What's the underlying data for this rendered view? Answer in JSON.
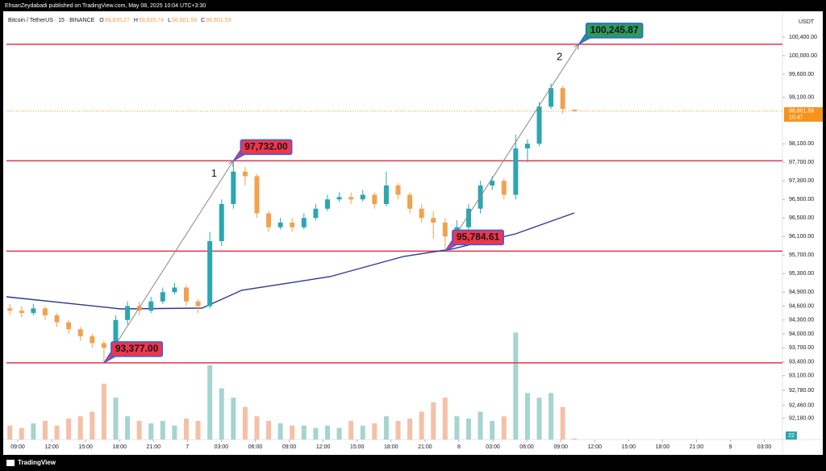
{
  "header": {
    "publisher": "EhsanZeydabadi published on TradingView.com, May 08, 2025 10:04 UTC+3:30",
    "brand": "TradingView"
  },
  "chart_data": {
    "type": "candlestick",
    "symbol": "Bitcoin / TetherUS · 15 · BINANCE",
    "ohlc_legend": [
      {
        "key": "O",
        "label": "98,835.27"
      },
      {
        "key": "H",
        "label": "98,835.74"
      },
      {
        "key": "L",
        "label": "98,801.58"
      },
      {
        "key": "C",
        "label": "98,801.59"
      }
    ],
    "currency": "USDT",
    "x": [
      -0.7,
      0.34,
      1.38,
      2.42,
      3.46,
      4.5,
      5.54,
      6.58,
      7.62,
      8.66,
      9.7,
      10.74,
      11.78,
      12.82,
      13.86,
      14.9,
      15.94,
      16.98,
      18.02,
      19.06,
      20.1,
      21.14,
      22.18,
      23.22,
      24.26,
      25.3,
      26.34,
      27.38,
      28.42,
      29.46,
      30.5,
      31.54,
      32.58,
      33.62,
      34.66,
      35.7,
      36.74,
      37.78,
      38.82,
      39.86,
      40.9,
      41.94,
      42.98,
      44.02,
      45.06,
      46.1,
      47.14,
      48.18,
      49.22
    ],
    "open": [
      94550,
      94500,
      94450,
      94550,
      94400,
      94250,
      94100,
      93950,
      93800,
      93700,
      94300,
      94600,
      94500,
      94700,
      94900,
      95000,
      94700,
      94600,
      96000,
      96800,
      97500,
      97400,
      96600,
      96300,
      96400,
      96300,
      96500,
      96700,
      96900,
      96950,
      96900,
      97000,
      96800,
      97200,
      97000,
      96700,
      96500,
      96400,
      96100,
      96300,
      96700,
      97200,
      97300,
      97000,
      98000,
      98100,
      98900,
      99300,
      98835.27
    ],
    "high": [
      94650,
      94600,
      94650,
      94600,
      94450,
      94300,
      94150,
      94000,
      93850,
      94400,
      94700,
      94700,
      94800,
      95000,
      95100,
      95050,
      94750,
      96200,
      96900,
      97732,
      97600,
      97450,
      96650,
      96500,
      96500,
      96600,
      96800,
      97000,
      97050,
      97050,
      97100,
      97050,
      97500,
      97250,
      97050,
      96800,
      96650,
      96500,
      96450,
      96800,
      97300,
      97400,
      97350,
      98300,
      98200,
      99000,
      99400,
      99350,
      98835.74
    ],
    "low": [
      94400,
      94350,
      94400,
      94300,
      94150,
      94000,
      93850,
      93700,
      93377,
      93650,
      94200,
      94400,
      94450,
      94650,
      94850,
      94600,
      94450,
      94550,
      95900,
      96700,
      97200,
      96500,
      96200,
      96250,
      96200,
      96250,
      96450,
      96650,
      96850,
      96800,
      96850,
      96700,
      96750,
      96900,
      96600,
      96400,
      96050,
      95784.61,
      96000,
      96200,
      96600,
      97100,
      96900,
      96900,
      97700,
      98050,
      98850,
      98750,
      98801.58
    ],
    "close": [
      94500,
      94450,
      94550,
      94400,
      94250,
      94100,
      93950,
      93800,
      93700,
      94300,
      94600,
      94500,
      94700,
      94900,
      95000,
      94700,
      94600,
      96000,
      96800,
      97500,
      97400,
      96600,
      96300,
      96400,
      96300,
      96500,
      96700,
      96900,
      96950,
      96900,
      97000,
      96800,
      97200,
      97000,
      96700,
      96500,
      96400,
      96100,
      96300,
      96700,
      97200,
      97300,
      97000,
      98000,
      98100,
      98900,
      99300,
      98850,
      98801.59
    ],
    "volume": [
      300,
      250,
      350,
      400,
      300,
      450,
      500,
      600,
      1200,
      900,
      500,
      400,
      350,
      400,
      300,
      450,
      400,
      1600,
      1100,
      900,
      700,
      500,
      400,
      350,
      300,
      300,
      250,
      300,
      250,
      400,
      300,
      350,
      500,
      400,
      450,
      600,
      800,
      900,
      500,
      450,
      600,
      400,
      500,
      2300,
      1000,
      900,
      1000,
      700,
      22
    ],
    "volume_lim": [
      0,
      2600
    ],
    "up_color": "#2aa7b0",
    "down_color": "#f0a24e",
    "volume_up_color": "#a6d4d0",
    "volume_down_color": "#f5c0a6",
    "moving_average": {
      "color": "#2b3990",
      "x": [
        -1,
        9.1,
        16.3,
        19.8,
        27.6,
        34.1,
        38.3,
        44,
        49.2
      ],
      "values": [
        94800,
        94540,
        94556,
        94940,
        95235,
        95670,
        95826,
        96157,
        96609
      ]
    },
    "levels": {
      "color": "#e5334b",
      "values": [
        100245.87,
        97732,
        95784.61,
        93377
      ]
    },
    "annotations": [
      {
        "label": "93,377.00",
        "x": 7.62,
        "value": 93377,
        "color": "#f23645"
      },
      {
        "label": "97,732.00",
        "x": 19.06,
        "value": 97732,
        "color": "#f23645"
      },
      {
        "label": "95,784.61",
        "x": 37.78,
        "value": 95784.61,
        "color": "#f23645"
      },
      {
        "label": "100,245.87",
        "x": 49.6,
        "value": 100245.87,
        "color": "#2e9b57"
      }
    ],
    "arrows": [
      {
        "label": "1",
        "from": [
          7.62,
          93377
        ],
        "to": [
          19.06,
          97732
        ]
      },
      {
        "label": "2",
        "from": [
          37.78,
          95784.61
        ],
        "to": [
          49.6,
          100245.87
        ]
      }
    ],
    "last_price": {
      "value": 98801.59,
      "label": "98,801.59",
      "countdown": "10:47",
      "color": "#f7931a"
    },
    "xlim": [
      -1,
      67.6
    ],
    "ylim": [
      91722,
      100956
    ],
    "xticks": [
      {
        "value": 0,
        "label": "09:00"
      },
      {
        "value": 3,
        "label": "12:00"
      },
      {
        "value": 6,
        "label": "15:00"
      },
      {
        "value": 9,
        "label": "18:00"
      },
      {
        "value": 12,
        "label": "21:00"
      },
      {
        "value": 15,
        "label": "7"
      },
      {
        "value": 18,
        "label": "03:00"
      },
      {
        "value": 21,
        "label": "06:00"
      },
      {
        "value": 24,
        "label": "09:00"
      },
      {
        "value": 27,
        "label": "12:00"
      },
      {
        "value": 30,
        "label": "15:00"
      },
      {
        "value": 33,
        "label": "18:00"
      },
      {
        "value": 36,
        "label": "21:00"
      },
      {
        "value": 39,
        "label": "8"
      },
      {
        "value": 42,
        "label": "03:00"
      },
      {
        "value": 45,
        "label": "06:00"
      },
      {
        "value": 48,
        "label": "09:00"
      },
      {
        "value": 51,
        "label": "12:00"
      },
      {
        "value": 54,
        "label": "15:00"
      },
      {
        "value": 57,
        "label": "18:00"
      },
      {
        "value": 60,
        "label": "21:00"
      },
      {
        "value": 63,
        "label": "9"
      },
      {
        "value": 66,
        "label": "03:00"
      }
    ],
    "yticks": [
      {
        "value": 100400,
        "label": "100,400.00"
      },
      {
        "value": 100000,
        "label": "100,000.00"
      },
      {
        "value": 99600,
        "label": "99,600.00"
      },
      {
        "value": 99100,
        "label": "99,100.00"
      },
      {
        "value": 98100,
        "label": "98,100.00"
      },
      {
        "value": 97700,
        "label": "97,700.00"
      },
      {
        "value": 97300,
        "label": "97,300.00"
      },
      {
        "value": 96900,
        "label": "96,900.00"
      },
      {
        "value": 96500,
        "label": "96,500.00"
      },
      {
        "value": 96100,
        "label": "96,100.00"
      },
      {
        "value": 95700,
        "label": "95,700.00"
      },
      {
        "value": 95300,
        "label": "95,300.00"
      },
      {
        "value": 94900,
        "label": "94,900.00"
      },
      {
        "value": 94600,
        "label": "94,600.00"
      },
      {
        "value": 94300,
        "label": "94,300.00"
      },
      {
        "value": 94000,
        "label": "94,000.00"
      },
      {
        "value": 93700,
        "label": "93,700.00"
      },
      {
        "value": 93400,
        "label": "93,400.00"
      },
      {
        "value": 93100,
        "label": "93,100.00"
      },
      {
        "value": 92780,
        "label": "92,780.00"
      },
      {
        "value": 92460,
        "label": "92,460.00"
      },
      {
        "value": 92180,
        "label": "92,180.00"
      }
    ],
    "grid": false
  }
}
